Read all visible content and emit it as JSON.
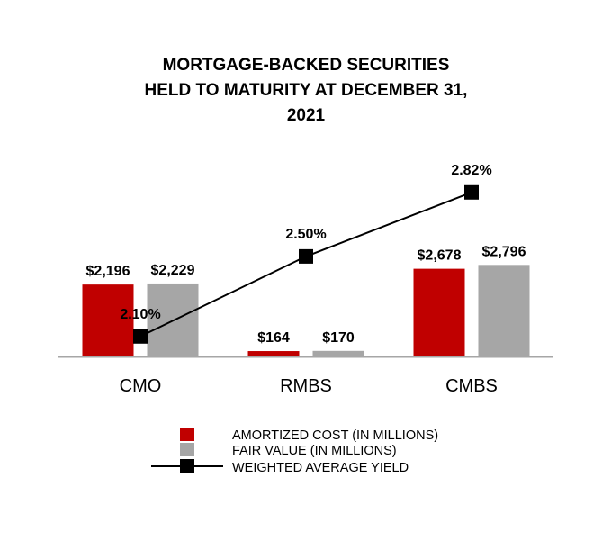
{
  "chart_data": {
    "type": "bar",
    "title": [
      "MORTGAGE-BACKED SECURITIES",
      "HELD TO MATURITY AT DECEMBER 31,",
      "2021"
    ],
    "categories": [
      "CMO",
      "RMBS",
      "CMBS"
    ],
    "series": [
      {
        "name": "AMORTIZED COST (IN MILLIONS)",
        "type": "bar",
        "color": "#c00000",
        "values": [
          2196,
          164,
          2678
        ],
        "labels": [
          "$2,196",
          "$164",
          "$2,678"
        ]
      },
      {
        "name": "FAIR VALUE (IN MILLIONS)",
        "type": "bar",
        "color": "#a6a6a6",
        "values": [
          2229,
          170,
          2796
        ],
        "labels": [
          "$2,229",
          "$170",
          "$2,796"
        ]
      },
      {
        "name": "WEIGHTED AVERAGE YIELD",
        "type": "line",
        "axis": "secondary",
        "color": "#000000",
        "values": [
          2.1,
          2.5,
          2.82
        ],
        "labels": [
          "2.10%",
          "2.50%",
          "2.82%"
        ]
      }
    ],
    "ylim": [
      0,
      5500
    ],
    "y2lim": [
      2.0,
      2.9
    ],
    "grid": false,
    "legend": "bottom-center"
  }
}
